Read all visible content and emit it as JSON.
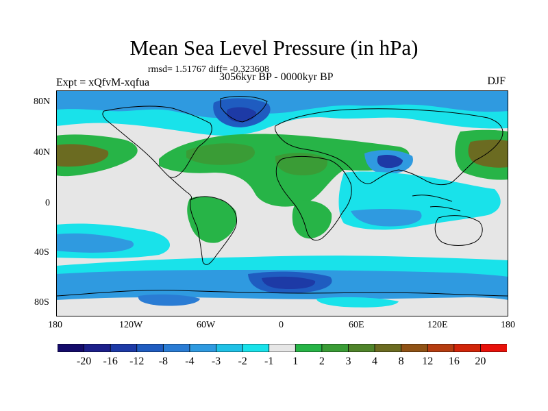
{
  "title": "Mean Sea Level Pressure (in hPa)",
  "stats": "rmsd= 1.51767 diff= -0.323608",
  "period": "3056kyr BP - 0000kyr BP",
  "experiment": "Expt = xQfvM-xqfua",
  "season": "DJF",
  "lat_ticks": [
    "80N",
    "40N",
    "0",
    "40S",
    "80S"
  ],
  "lon_ticks": [
    "180",
    "120W",
    "60W",
    "0",
    "60E",
    "120E",
    "180"
  ],
  "colorbar": {
    "labels": [
      "-20",
      "-16",
      "-12",
      "-8",
      "-4",
      "-3",
      "-2",
      "-1",
      "1",
      "2",
      "3",
      "4",
      "8",
      "12",
      "16",
      "20"
    ],
    "colors": [
      "#140b6a",
      "#1c1f8a",
      "#1d3aa6",
      "#1f5cc0",
      "#2a7cd4",
      "#2f9ae0",
      "#1fc1e6",
      "#19e2ea",
      "#e6e6e6",
      "#27b447",
      "#3a9c36",
      "#4f842a",
      "#6b6b21",
      "#8f5215",
      "#b53c10",
      "#d12509",
      "#e8110a"
    ]
  }
}
